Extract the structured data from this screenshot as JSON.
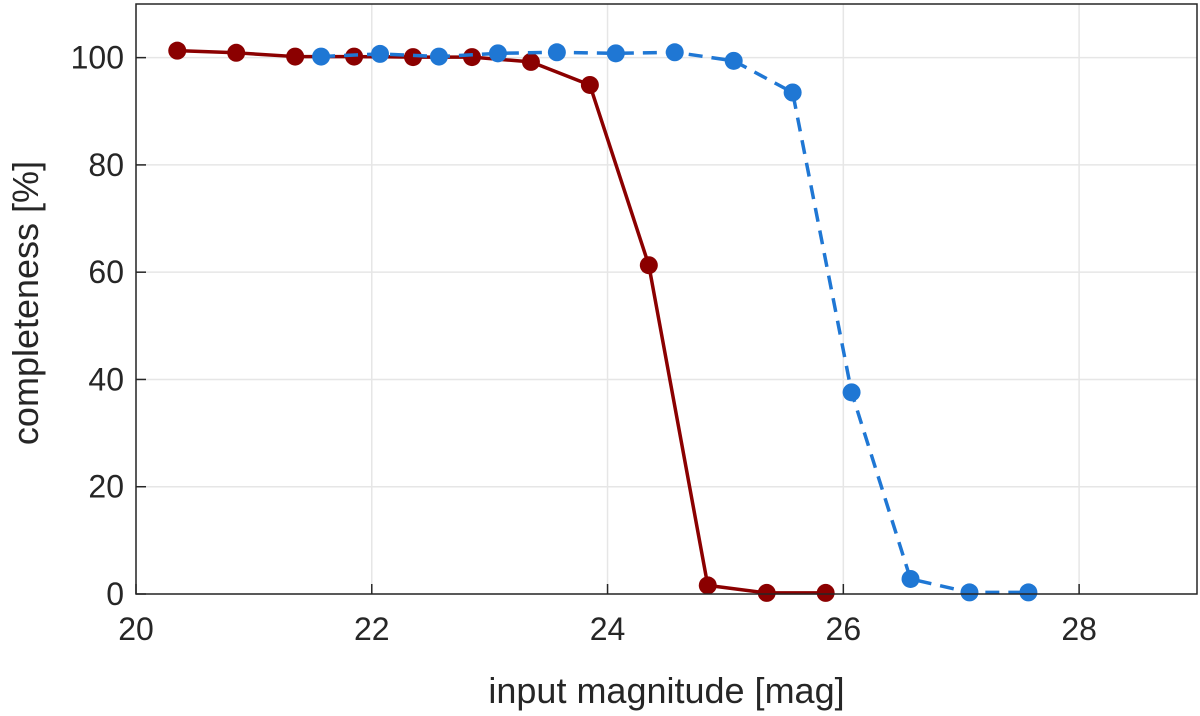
{
  "chart_data": {
    "type": "line",
    "xlabel": "input magnitude [mag]",
    "ylabel": "completeness [%]",
    "xlim": [
      20,
      29
    ],
    "ylim": [
      0,
      110
    ],
    "xticks": [
      20,
      22,
      24,
      26,
      28
    ],
    "yticks": [
      0,
      20,
      40,
      60,
      80,
      100
    ],
    "grid": true,
    "series": [
      {
        "color": "#8b0000",
        "line_style": "solid",
        "marker": "circle",
        "x": [
          20.35,
          20.85,
          21.35,
          21.85,
          22.35,
          22.85,
          23.35,
          23.85,
          24.35,
          24.85,
          25.35,
          25.85
        ],
        "y": [
          101.3,
          100.9,
          100.2,
          100.2,
          100.1,
          100.1,
          99.2,
          94.9,
          61.3,
          1.6,
          0.2,
          0.2
        ]
      },
      {
        "color": "#1f77d4",
        "line_style": "dashed",
        "marker": "circle",
        "x": [
          21.57,
          22.07,
          22.57,
          23.07,
          23.57,
          24.07,
          24.57,
          25.07,
          25.57,
          26.07,
          26.57,
          27.07,
          27.57
        ],
        "y": [
          100.2,
          100.7,
          100.2,
          100.8,
          101.0,
          100.8,
          101.0,
          99.4,
          93.5,
          37.6,
          2.8,
          0.3,
          0.3
        ]
      }
    ]
  }
}
